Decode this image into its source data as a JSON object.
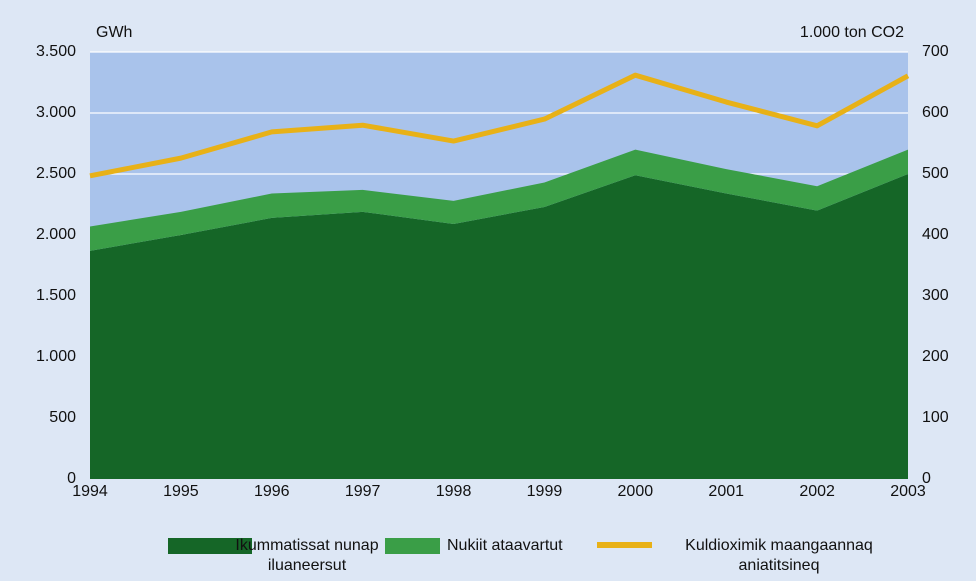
{
  "chart_data": {
    "type": "stacked_area_line",
    "y_unit_label": "GWh",
    "y2_unit_label": "1.000 ton CO2",
    "categories": [
      "1994",
      "1995",
      "1996",
      "1997",
      "1998",
      "1999",
      "2000",
      "2001",
      "2002",
      "2003"
    ],
    "series": [
      {
        "name": "Ikummatissat nunap iluaneersut",
        "color": "#156627",
        "type": "area",
        "values": [
          1870,
          2000,
          2140,
          2190,
          2090,
          2230,
          2490,
          2340,
          2200,
          2500
        ]
      },
      {
        "name": "Nukiit ataavartut",
        "color": "#3a9e47",
        "type": "area",
        "values": [
          200,
          190,
          200,
          180,
          190,
          200,
          210,
          200,
          200,
          200
        ]
      },
      {
        "name": "Kuldioximik maangaannaq aniatitsineq",
        "color": "#e8b117",
        "type": "line",
        "axis": "y2",
        "values": [
          497,
          526,
          569,
          580,
          554,
          590,
          662,
          618,
          579,
          661
        ]
      }
    ],
    "ylim": [
      0,
      3500
    ],
    "yticks": [
      0,
      500,
      {
        "value": 1000,
        "label": "1.000"
      },
      {
        "value": 1500,
        "label": "1.500"
      },
      {
        "value": 2000,
        "label": "2.000"
      },
      {
        "value": 2500,
        "label": "2.500"
      },
      {
        "value": 3000,
        "label": "3.000"
      },
      {
        "value": 3500,
        "label": "3.500"
      }
    ],
    "y2lim": [
      0,
      700
    ],
    "y2ticks": [
      0,
      100,
      200,
      300,
      400,
      500,
      600,
      700
    ],
    "grid": true
  }
}
